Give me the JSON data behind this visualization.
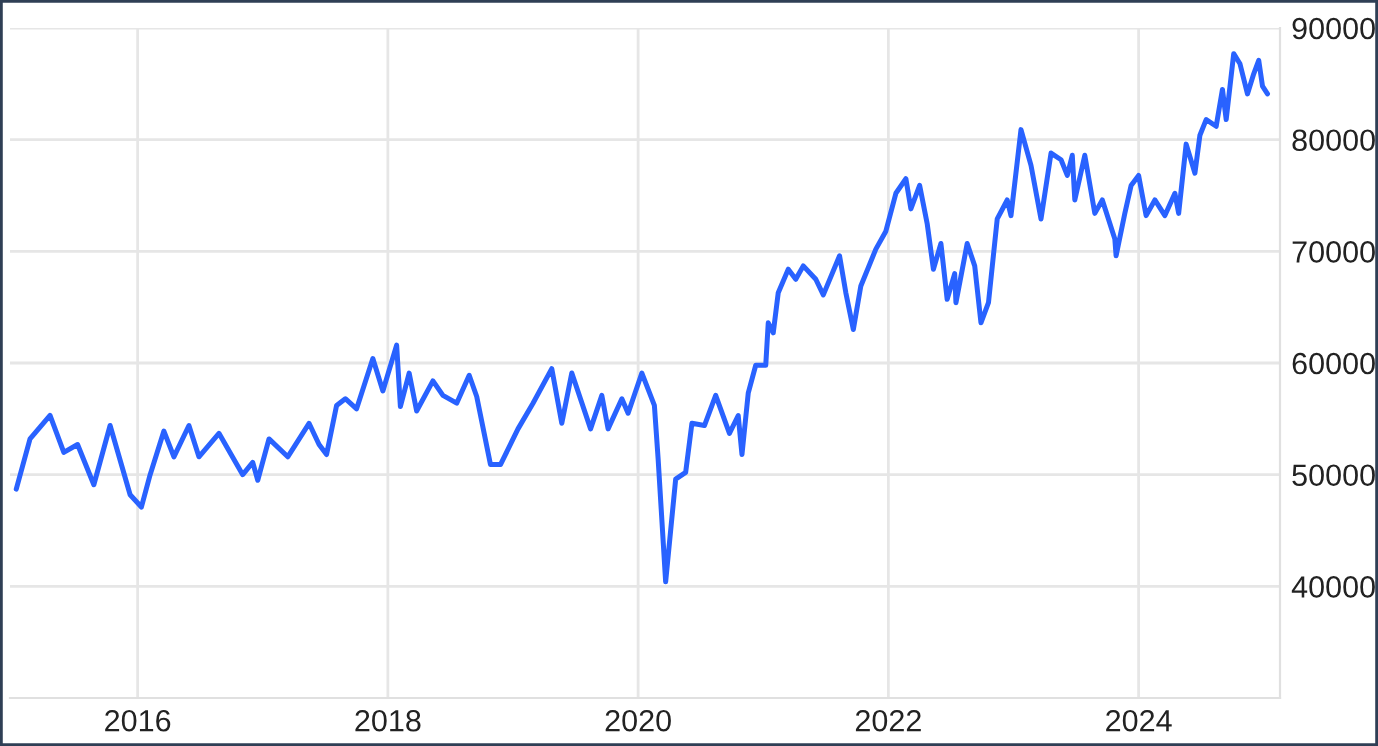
{
  "chart_data": {
    "type": "line",
    "x": [
      2015.03,
      2015.14,
      2015.3,
      2015.41,
      2015.52,
      2015.65,
      2015.78,
      2015.94,
      2016.03,
      2016.1,
      2016.21,
      2016.29,
      2016.41,
      2016.49,
      2016.65,
      2016.84,
      2016.92,
      2016.96,
      2017.05,
      2017.2,
      2017.37,
      2017.45,
      2017.51,
      2017.59,
      2017.66,
      2017.75,
      2017.88,
      2017.96,
      2018.07,
      2018.1,
      2018.17,
      2018.23,
      2018.36,
      2018.44,
      2018.55,
      2018.65,
      2018.71,
      2018.82,
      2018.9,
      2019.04,
      2019.16,
      2019.31,
      2019.39,
      2019.47,
      2019.62,
      2019.71,
      2019.76,
      2019.87,
      2019.92,
      2020.03,
      2020.13,
      2020.16,
      2020.22,
      2020.3,
      2020.38,
      2020.43,
      2020.53,
      2020.62,
      2020.73,
      2020.8,
      2020.83,
      2020.88,
      2020.94,
      2021.02,
      2021.04,
      2021.08,
      2021.12,
      2021.2,
      2021.26,
      2021.32,
      2021.42,
      2021.48,
      2021.61,
      2021.66,
      2021.72,
      2021.78,
      2021.9,
      2021.98,
      2022.06,
      2022.14,
      2022.18,
      2022.25,
      2022.31,
      2022.36,
      2022.42,
      2022.47,
      2022.53,
      2022.54,
      2022.63,
      2022.69,
      2022.74,
      2022.8,
      2022.87,
      2022.95,
      2022.98,
      2023.06,
      2023.14,
      2023.22,
      2023.3,
      2023.38,
      2023.43,
      2023.47,
      2023.49,
      2023.57,
      2023.65,
      2023.71,
      2023.81,
      2023.82,
      2023.89,
      2023.94,
      2024.0,
      2024.06,
      2024.13,
      2024.21,
      2024.29,
      2024.32,
      2024.38,
      2024.45,
      2024.49,
      2024.54,
      2024.62,
      2024.67,
      2024.7,
      2024.76,
      2024.81,
      2024.87,
      2024.92,
      2024.96,
      2024.99,
      2025.03
    ],
    "series": [
      {
        "color": "#2962ff",
        "values": [
          48700,
          53200,
          55300,
          52000,
          52700,
          49100,
          54400,
          48200,
          47100,
          50000,
          53900,
          51600,
          54400,
          51600,
          53700,
          50000,
          51100,
          49500,
          53200,
          51600,
          54600,
          52700,
          51800,
          56200,
          56800,
          55900,
          60400,
          57500,
          61600,
          56100,
          59100,
          55700,
          58400,
          57100,
          56400,
          58900,
          57000,
          50900,
          50900,
          54100,
          56400,
          59500,
          54600,
          59100,
          54100,
          57100,
          54100,
          56800,
          55500,
          59100,
          56200,
          51400,
          40400,
          49600,
          50200,
          54600,
          54400,
          57100,
          53700,
          55300,
          51800,
          57300,
          59800,
          59800,
          63600,
          62700,
          66300,
          68400,
          67500,
          68700,
          67500,
          66100,
          69600,
          66300,
          63000,
          66900,
          70200,
          71800,
          75200,
          76500,
          73800,
          75900,
          72500,
          68400,
          70700,
          65700,
          68000,
          65400,
          70700,
          68700,
          63600,
          65400,
          72900,
          74600,
          73200,
          80900,
          77700,
          72900,
          78800,
          78200,
          76800,
          78600,
          74600,
          78600,
          73400,
          74600,
          71100,
          69600,
          73400,
          75900,
          76800,
          73200,
          74600,
          73200,
          75200,
          73400,
          79600,
          77000,
          80400,
          81800,
          81200,
          84500,
          81800,
          87700,
          86800,
          84100,
          85900,
          87100,
          84800,
          84100
        ]
      }
    ],
    "xlim": [
      2014.98,
      2025.13
    ],
    "xticks": [
      2016,
      2018,
      2020,
      2022,
      2024
    ],
    "ylim": [
      30000,
      90000
    ],
    "yticks": [
      40000,
      50000,
      60000,
      70000,
      80000,
      90000
    ],
    "grid": true,
    "legend": false,
    "marker": "none",
    "line_style": "solid"
  }
}
